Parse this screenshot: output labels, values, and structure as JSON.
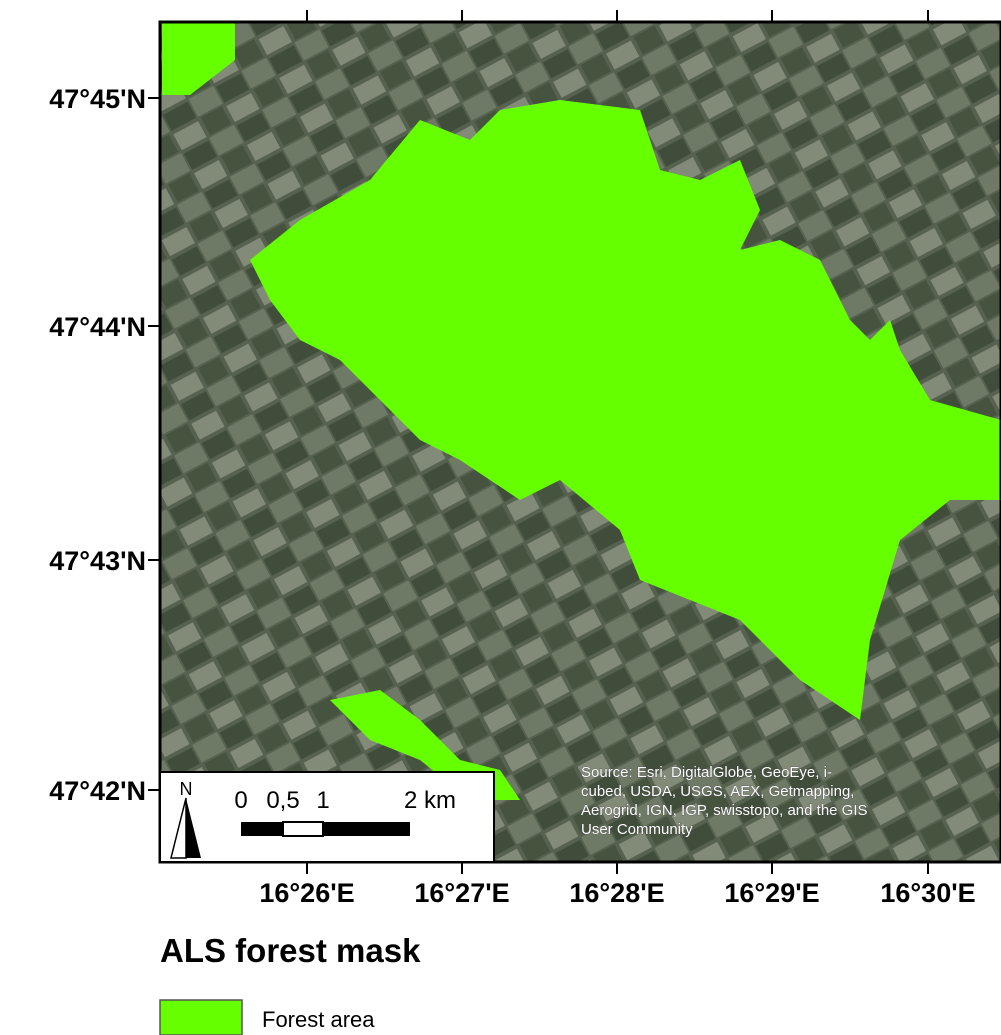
{
  "map": {
    "latitude_labels": [
      "47°45'N",
      "47°44'N",
      "47°43'N",
      "47°42'N"
    ],
    "longitude_labels": [
      "16°26'E",
      "16°27'E",
      "16°28'E",
      "16°29'E",
      "16°30'E"
    ],
    "north_arrow": "N",
    "scale_labels": [
      "0",
      "0,5",
      "1",
      "2 km"
    ],
    "source": [
      "Source: Esri, DigitalGlobe, GeoEye, i-",
      "cubed, USDA, USGS, AEX, Getmapping,",
      "Aerogrid, IGN, IGP, swisstopo, and the GIS",
      "User Community"
    ]
  },
  "title": "ALS forest mask",
  "legend": {
    "items": [
      {
        "label": "Forest area",
        "color": "#66ff00"
      }
    ]
  }
}
